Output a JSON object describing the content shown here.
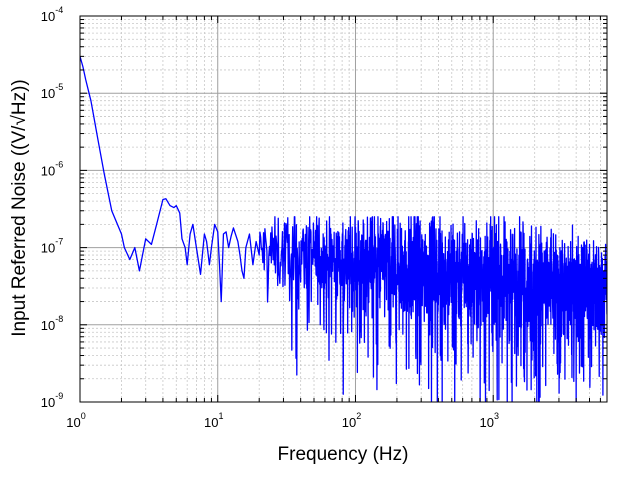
{
  "chart_data": {
    "type": "line",
    "title": "",
    "xlabel": "Frequency (Hz)",
    "ylabel": "Input Referred Noise ((V/√Hz))",
    "xscale": "log",
    "yscale": "log",
    "xlim": [
      1,
      6700
    ],
    "ylim": [
      1e-09,
      0.0001
    ],
    "grid": true,
    "legend": "none",
    "colors": {
      "series": "#0000ff",
      "grid_major": "#a0a0a0",
      "grid_minor": "#c8c8c8",
      "axis": "#000000"
    },
    "x_tick_labels": [
      {
        "base": "10",
        "exp": "0"
      },
      {
        "base": "10",
        "exp": "1"
      },
      {
        "base": "10",
        "exp": "2"
      },
      {
        "base": "10",
        "exp": "3"
      }
    ],
    "y_tick_labels": [
      {
        "base": "10",
        "exp": "-4"
      },
      {
        "base": "10",
        "exp": "-5"
      },
      {
        "base": "10",
        "exp": "-6"
      },
      {
        "base": "10",
        "exp": "-7"
      },
      {
        "base": "10",
        "exp": "-8"
      },
      {
        "base": "10",
        "exp": "-9"
      }
    ],
    "series": [
      {
        "x": [
          1.0,
          1.05,
          1.1,
          1.2,
          1.35,
          1.5,
          1.7,
          2.0,
          2.1,
          2.3,
          2.5,
          2.7,
          3.0,
          3.3,
          3.6,
          4.0,
          4.2,
          4.5,
          4.8,
          5.0,
          5.3,
          5.5,
          5.8,
          6.0,
          6.3,
          6.6,
          7.0,
          7.5,
          8.0,
          8.3,
          8.7,
          9.0,
          9.5,
          10.0,
          10.3,
          10.6,
          11.0,
          11.5,
          12.0,
          12.5,
          13.0,
          14.0,
          14.5,
          15.0,
          15.5,
          16.0,
          17.0,
          18.0,
          19.0,
          20.0
        ],
        "y": [
          3e-05,
          2.2e-05,
          1.5e-05,
          8e-06,
          2.5e-06,
          9e-07,
          3e-07,
          1.5e-07,
          1e-07,
          7e-08,
          1e-07,
          5e-08,
          1.3e-07,
          1.1e-07,
          2e-07,
          4.2e-07,
          4.3e-07,
          3.5e-07,
          3.3e-07,
          3.5e-07,
          2.8e-07,
          1.3e-07,
          1e-07,
          6e-08,
          1.5e-07,
          2e-07,
          1e-07,
          4.5e-08,
          1.5e-07,
          1.2e-07,
          6e-08,
          1e-07,
          2e-07,
          1.6e-07,
          6e-08,
          2e-08,
          1.5e-07,
          1.6e-07,
          1e-07,
          1.4e-07,
          1.8e-07,
          1.2e-07,
          8e-08,
          5e-08,
          4e-08,
          1e-07,
          1.5e-07,
          6e-08,
          1.2e-07,
          8e-08
        ]
      }
    ]
  }
}
